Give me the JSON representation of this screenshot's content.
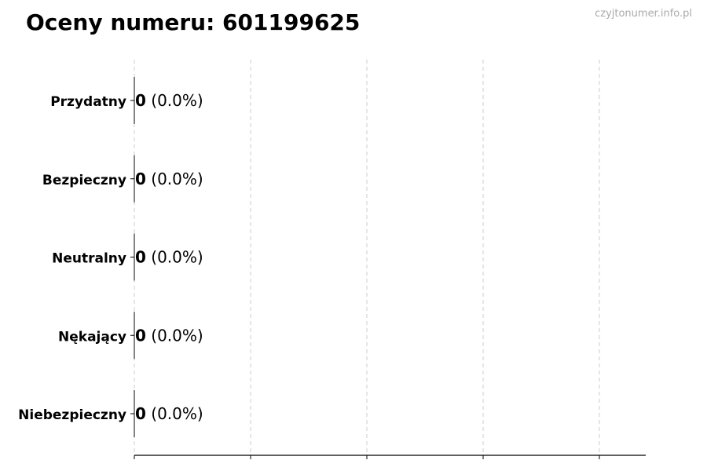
{
  "title": "Oceny numeru: 601199625",
  "watermark": "czyjtonumer.info.pl",
  "chart_data": {
    "type": "bar",
    "orientation": "horizontal",
    "categories": [
      "Przydatny",
      "Bezpieczny",
      "Neutralny",
      "Nękający",
      "Niebezpieczny"
    ],
    "values": [
      0,
      0,
      0,
      0,
      0
    ],
    "data_labels": [
      {
        "count": "0",
        "pct": "(0.0%)"
      },
      {
        "count": "0",
        "pct": "(0.0%)"
      },
      {
        "count": "0",
        "pct": "(0.0%)"
      },
      {
        "count": "0",
        "pct": "(0.0%)"
      },
      {
        "count": "0",
        "pct": "(0.0%)"
      }
    ],
    "xlabel": "",
    "ylabel": "",
    "grid": "vertical dashed",
    "x_tick_labels_shown": false
  }
}
